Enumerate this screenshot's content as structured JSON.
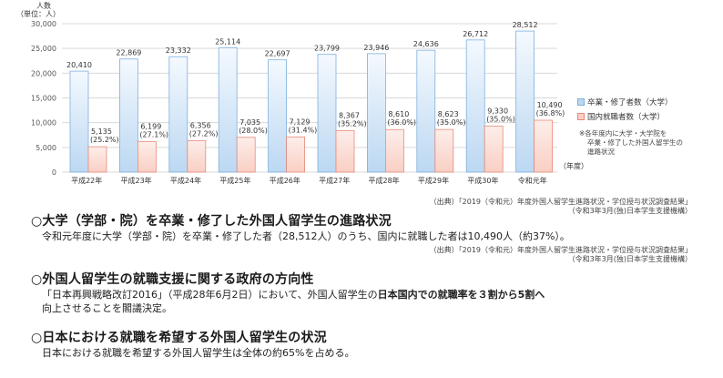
{
  "chart_data": {
    "type": "bar",
    "unit_label": "人数\n（単位：人）",
    "xlabel": "（年度）",
    "categories": [
      "平成22年",
      "平成23年",
      "平成24年",
      "平成25年",
      "平成26年",
      "平成27年",
      "平成28年",
      "平成29年",
      "平成30年",
      "令和元年"
    ],
    "y_ticks": [
      "0",
      "5,000",
      "10,000",
      "15,000",
      "20,000",
      "25,000",
      "30,000"
    ],
    "ylim": [
      0,
      30000
    ],
    "grid": true,
    "legend_position": "right",
    "series": [
      {
        "name": "卒業・修了者数（大学）",
        "values": [
          20410,
          22869,
          23332,
          25114,
          22697,
          23799,
          23946,
          24636,
          26712,
          28512
        ],
        "labels": [
          "20,410",
          "22,869",
          "23,332",
          "25,114",
          "22,697",
          "23,799",
          "23,946",
          "24,636",
          "26,712",
          "28,512"
        ],
        "color": "#bcd8f2"
      },
      {
        "name": "国内就職者数（大学）",
        "values": [
          5135,
          6199,
          6356,
          7035,
          7129,
          8367,
          8610,
          8623,
          9330,
          10490
        ],
        "labels": [
          "5,135",
          "6,199",
          "6,356",
          "7,035",
          "7,129",
          "8,367",
          "8,610",
          "8,623",
          "9,330",
          "10,490"
        ],
        "pct_labels": [
          "(25.2%)",
          "(27.1%)",
          "(27.2%)",
          "(28.0%)",
          "(31.4%)",
          "(35.2%)",
          "(36.0%)",
          "(35.0%)",
          "(35.0%)",
          "(36.8%)"
        ],
        "color": "#f9cfc4"
      }
    ],
    "note": [
      "※各年度内に大学・大学院を",
      "卒業・修了した外国人留学生の",
      "進路状況"
    ]
  },
  "source1": {
    "line1": "（出典）「2019（令和元）年度外国人留学生進路状況・学位授与状況調査結果」",
    "line2": "（令和3年3月(独)日本学生支援機構）"
  },
  "section1": {
    "title": "○大学（学部・院）を卒業・修了した外国人留学生の進路状況",
    "body": "令和元年度に大学（学部・院）を卒業・修了した者（28,512人）のうち、国内に就職した者は10,490人（約37%）。"
  },
  "source2": {
    "line1": "（出典）「2019（令和元）年度外国人留学生進路状況・学位授与状況調査結果」",
    "line2": "（令和3年3月(独)日本学生支援機構）"
  },
  "section2": {
    "title": "○外国人留学生の就職支援に関する政府の方向性",
    "body1_a": "「日本再興戦略改訂2016」（平成28年6月2日）において、外国人留学生の",
    "body1_b": "日本国内での就職率を３割から5割へ",
    "body2": "向上させることを閣議決定。"
  },
  "section3": {
    "title": "○日本における就職を希望する外国人留学生の状況",
    "body": "日本における就職を希望する外国人留学生は全体の約65%を占める。"
  }
}
